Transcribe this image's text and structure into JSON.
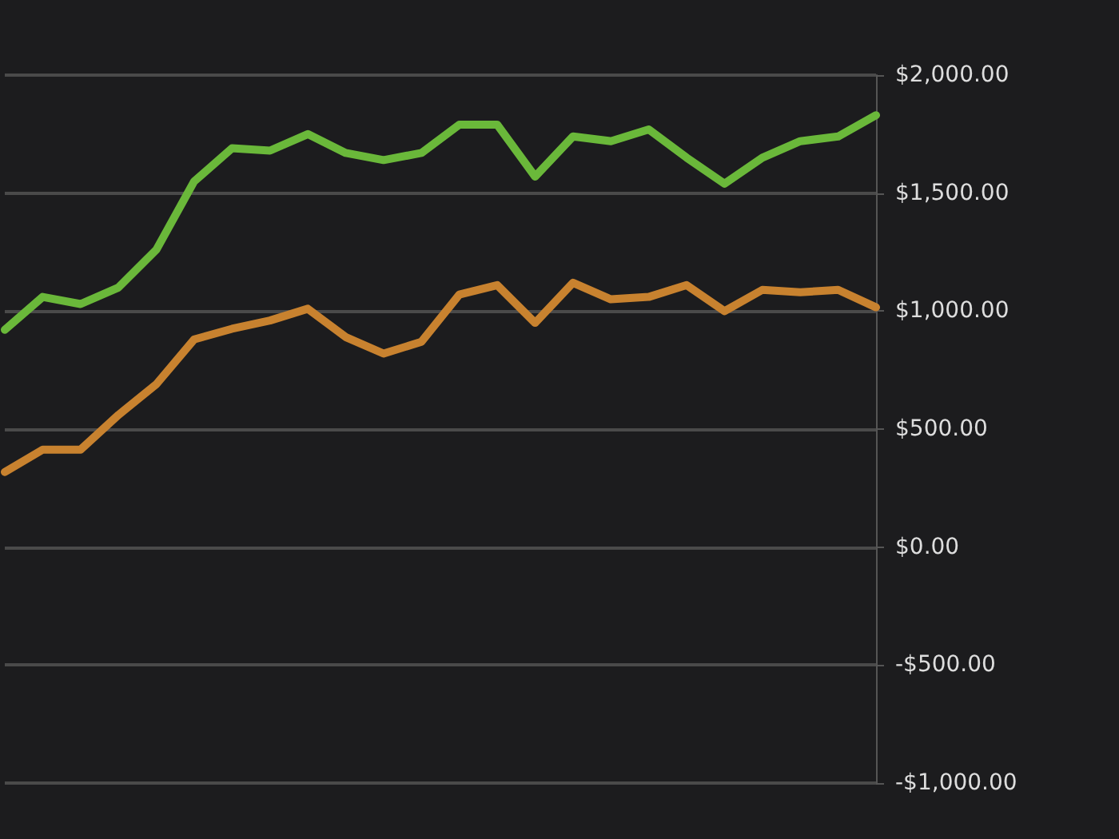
{
  "chart_data": {
    "type": "line",
    "categories": [
      null,
      null,
      null,
      null,
      null,
      null,
      null,
      null,
      null,
      null,
      null,
      null,
      null,
      null,
      null,
      null,
      null,
      null,
      null,
      null,
      null,
      null,
      null,
      null
    ],
    "series": [
      {
        "color": "#6ab83a",
        "values": [
          921,
          1060,
          1030,
          1100,
          1260,
          1550,
          1690,
          1680,
          1750,
          1670,
          1640,
          1670,
          1790,
          1790,
          1570,
          1740,
          1720,
          1770,
          1650,
          1540,
          1650,
          1720,
          1740,
          1830
        ]
      },
      {
        "color": "#c8822f",
        "values": [
          318,
          413,
          413,
          560,
          690,
          880,
          925,
          960,
          1010,
          890,
          820,
          870,
          1070,
          1110,
          950,
          1120,
          1050,
          1060,
          1110,
          1000,
          1090,
          1080,
          1090,
          1016
        ]
      }
    ],
    "ylim": [
      -1000,
      2000
    ],
    "yticks": [
      {
        "value": -1000,
        "label": "-$1,000.00"
      },
      {
        "value": -500,
        "label": "-$500.00"
      },
      {
        "value": 0,
        "label": "$0.00"
      },
      {
        "value": 500,
        "label": "$500.00"
      },
      {
        "value": 1000,
        "label": "$1,000.00"
      },
      {
        "value": 1500,
        "label": "$1,500.00"
      },
      {
        "value": 2000,
        "label": "$2,000.00"
      }
    ],
    "grid": "y",
    "marker": "none",
    "line_style": "solid"
  }
}
